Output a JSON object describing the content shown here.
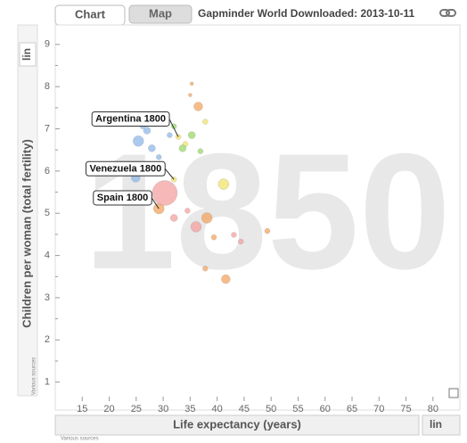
{
  "ui": {
    "tabs": [
      "Chart",
      "Map"
    ],
    "title": "Gapminder World Downloaded: 2013-10-11",
    "y_scale": "lin",
    "x_scale": "lin",
    "y_source": "Various sources",
    "x_source": "Various sources"
  },
  "chart_data": {
    "type": "scatter",
    "watermark": "1850",
    "xlabel": "Life expectancy (years)",
    "ylabel": "Children per woman (total fertility)",
    "xlim": [
      10,
      83
    ],
    "ylim": [
      0.55,
      9.25
    ],
    "xticks": [
      15,
      20,
      25,
      30,
      35,
      40,
      45,
      50,
      55,
      60,
      65,
      70,
      75,
      80
    ],
    "yticks": [
      1,
      1.5,
      2,
      2.5,
      3,
      3.5,
      4,
      4.5,
      5,
      5.5,
      6,
      6.5,
      7,
      7.5,
      8,
      8.5,
      9
    ],
    "series": [
      {
        "color": "#8fb8e8",
        "x": [
          25.4,
          24.9,
          27.0,
          27.9,
          30.3,
          31.2,
          29.2,
          27.5,
          26.2
        ],
        "values": [
          6.71,
          5.84,
          6.96,
          6.54,
          7.27,
          6.85,
          6.33,
          6.12,
          7.06
        ],
        "sizes": [
          73,
          51,
          33,
          33,
          18,
          18,
          18,
          18,
          18
        ]
      },
      {
        "color": "#f2e36a",
        "x": [
          32.8,
          32.0,
          41.2,
          34.1,
          37.8
        ],
        "values": [
          6.81,
          5.8,
          5.69,
          6.64,
          7.17
        ],
        "sizes": [
          18,
          18,
          73,
          18,
          18
        ]
      },
      {
        "color": "#f4a460",
        "x": [
          29.2,
          38.1,
          41.6,
          36.5,
          39.4,
          37.8,
          49.3,
          35.3,
          35.0
        ],
        "values": [
          5.11,
          4.89,
          3.44,
          7.53,
          4.43,
          3.69,
          4.58,
          8.07,
          7.8
        ],
        "sizes": [
          73,
          73,
          51,
          51,
          18,
          18,
          18,
          8,
          8
        ]
      },
      {
        "color": "#f4a0a0",
        "x": [
          30.3,
          36.1,
          32.0,
          34.5,
          44.4,
          43.1
        ],
        "values": [
          5.48,
          4.68,
          4.89,
          5.06,
          4.33,
          4.49
        ],
        "sizes": [
          400,
          73,
          33,
          18,
          18,
          18
        ]
      },
      {
        "color": "#9ad86a",
        "x": [
          35.3,
          33.6,
          36.9,
          32.0
        ],
        "values": [
          6.85,
          6.54,
          6.47,
          7.06
        ],
        "sizes": [
          33,
          33,
          18,
          18
        ]
      }
    ],
    "annotations": [
      {
        "text": "Argentina 1800",
        "x": 32.8,
        "y": 6.81
      },
      {
        "text": "Venezuela 1800",
        "x": 32.0,
        "y": 5.8
      },
      {
        "text": "Spain 1800",
        "x": 29.2,
        "y": 5.11
      }
    ]
  }
}
